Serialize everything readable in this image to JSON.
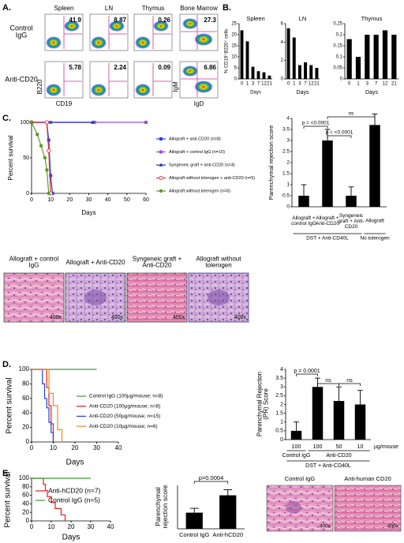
{
  "panel_labels": [
    "A.",
    "B.",
    "C.",
    "D.",
    "E."
  ],
  "flow": {
    "tissues": [
      "Spleen",
      "LN",
      "Thymus",
      "Bone Marrow"
    ],
    "groups": [
      "Control IgG",
      "Anti-CD20"
    ],
    "x_label": "CD19",
    "y_label": "B220",
    "x2_label": "IgD",
    "y2_label": "IgM",
    "values": [
      [
        41.9,
        8.87,
        0.26,
        27.3
      ],
      [
        5.78,
        2.24,
        0.09,
        6.86
      ]
    ]
  },
  "histology": {
    "c": [
      {
        "caption": "Allograft + control IgG",
        "magnification": "400x"
      },
      {
        "caption": "Allograft + Anti-CD20",
        "magnification": "400x"
      },
      {
        "caption": "Syngeneic graft + Anti-CD20",
        "magnification": "400x"
      },
      {
        "caption": "Allograft without tolerogen",
        "magnification": "400x"
      }
    ],
    "e": [
      {
        "caption": "Control IgG",
        "magnification": "400x"
      },
      {
        "caption": "Anti-human CD20",
        "magnification": "400x"
      }
    ]
  },
  "chart_data": [
    {
      "type": "bar",
      "title": "Spleen",
      "ylabel": "% CD19⁺B220⁺ cells",
      "xlabel": "Days",
      "categories": [
        "0",
        "1",
        "3",
        "7",
        "12",
        "21"
      ],
      "values": [
        22,
        17,
        5.5,
        3.5,
        3,
        1.5
      ],
      "color": "#000000",
      "ylim": [
        0,
        25
      ],
      "yticks": [
        0,
        5,
        10,
        15,
        20,
        25
      ]
    },
    {
      "type": "bar",
      "title": "LN",
      "xlabel": "Days",
      "categories": [
        "0",
        "1",
        "3",
        "7",
        "12",
        "21"
      ],
      "values": [
        5.5,
        4.5,
        1.5,
        1.8,
        1.5,
        1.2
      ],
      "color": "#000000",
      "ylim": [
        0,
        6
      ],
      "yticks": [
        0,
        2,
        4,
        6
      ]
    },
    {
      "type": "bar",
      "title": "Thymus",
      "xlabel": "Days",
      "categories": [
        "0",
        "1",
        "3",
        "7",
        "12",
        "21"
      ],
      "values": [
        0.18,
        0.1,
        0.2,
        0.2,
        0.22,
        0.2
      ],
      "color": "#000000",
      "ylim": [
        0,
        0.25
      ],
      "yticks": [
        0,
        0.05,
        0.1,
        0.15,
        0.2,
        0.25
      ]
    },
    {
      "type": "line",
      "ylabel": "Percent survival",
      "xlabel": "Days",
      "xlim": [
        0,
        60
      ],
      "xticks": [
        0,
        10,
        20,
        30,
        40,
        50,
        60
      ],
      "ylim": [
        0,
        100
      ],
      "yticks": [
        0,
        50,
        100
      ],
      "series": [
        {
          "name": "Allograft + anti-CD20 (n=8)",
          "color": "#2346d8",
          "marker": "square",
          "x": [
            0,
            8,
            9,
            10,
            11
          ],
          "values": [
            100,
            100,
            75,
            25,
            0
          ]
        },
        {
          "name": "Allograft + control IgG (n=10)",
          "color": "#9a4fd8",
          "marker": "square",
          "x": [
            0,
            10,
            33,
            60
          ],
          "values": [
            100,
            100,
            100,
            100
          ]
        },
        {
          "name": "Syngeneic graft + anti-CD20 (n=4)",
          "color": "#1f35c0",
          "marker": "triangle",
          "x": [
            0,
            32
          ],
          "values": [
            100,
            100
          ]
        },
        {
          "name": "Allograft without tolerogen + anti-CD20 (n=5)",
          "color": "#e0303a",
          "marker": "open-circle",
          "x": [
            0,
            8,
            9,
            10
          ],
          "values": [
            100,
            100,
            60,
            0
          ]
        },
        {
          "name": "Allograft without tolerogen (n=6)",
          "color": "#5a9a2a",
          "marker": "circle",
          "x": [
            0,
            3,
            5,
            7,
            8,
            9
          ],
          "values": [
            100,
            83,
            67,
            50,
            33,
            0
          ]
        }
      ]
    },
    {
      "type": "bar",
      "ylabel": "Parenchymal rejection score",
      "categories": [
        "Allograft + control IgG",
        "Allograft + Anti-CD20",
        "Syngeneic graft + Anti-CD20",
        "Allograft"
      ],
      "values": [
        0.5,
        3,
        0.5,
        3.7
      ],
      "errors": [
        0.5,
        0.5,
        0.4,
        0.5
      ],
      "color": "#000000",
      "ylim": [
        0,
        4
      ],
      "yticks": [
        0,
        0.5,
        1,
        1.5,
        2,
        2.5,
        3,
        3.5,
        4
      ],
      "annotations": [
        "p = <0.0001",
        "p = <0.0001",
        "ns"
      ],
      "groups": [
        "DST + Anti-CD40L",
        "No tolerogen"
      ]
    },
    {
      "type": "line",
      "ylabel": "Percent survival",
      "xlabel": "Days",
      "xlim": [
        0,
        40
      ],
      "xticks": [
        0,
        10,
        20,
        30,
        40
      ],
      "ylim": [
        0,
        100
      ],
      "yticks": [
        0,
        20,
        40,
        60,
        80,
        100
      ],
      "series": [
        {
          "name": "Control IgG (100µg/mouse; n=8)",
          "color": "#3a9a3a",
          "x": [
            0,
            30
          ],
          "values": [
            100,
            100
          ]
        },
        {
          "name": "Anti-CD20 (100µg/mouse; n=8)",
          "color": "#e02020",
          "x": [
            0,
            7,
            7,
            8,
            8,
            9,
            9,
            10,
            10
          ],
          "values": [
            100,
            100,
            75,
            75,
            50,
            50,
            25,
            25,
            0
          ]
        },
        {
          "name": "Anti-CD20 (50µg/mouse; n=15)",
          "color": "#2040d0",
          "x": [
            0,
            5,
            5,
            6,
            6,
            7,
            7,
            8,
            8,
            9,
            9,
            10,
            10
          ],
          "values": [
            100,
            100,
            80,
            80,
            60,
            60,
            47,
            47,
            27,
            27,
            13,
            13,
            0
          ]
        },
        {
          "name": "Anti-CD20 (10µg/mouse; n=6)",
          "color": "#f08a20",
          "x": [
            0,
            8,
            8,
            10,
            10,
            12,
            12,
            14,
            14
          ],
          "values": [
            100,
            100,
            67,
            67,
            50,
            50,
            17,
            17,
            0
          ]
        }
      ]
    },
    {
      "type": "bar",
      "ylabel": "Parenchymal Rejection (PR) Score",
      "categories": [
        "100",
        "100",
        "50",
        "10"
      ],
      "x_unit": "µg/mouse",
      "values": [
        0.5,
        3,
        2.2,
        2
      ],
      "errors": [
        0.5,
        0.5,
        0.8,
        0.8
      ],
      "color": "#000000",
      "ylim": [
        0,
        4
      ],
      "yticks": [
        0,
        0.5,
        1,
        1.5,
        2,
        2.5,
        3,
        3.5,
        4
      ],
      "annotations": [
        "p = 0.0001",
        "ns",
        "ns"
      ],
      "groups": [
        "Control IgG",
        "Anti-CD20",
        "DST + Anti-CD40L"
      ]
    },
    {
      "type": "line",
      "ylabel": "Percent survival",
      "xlabel": "Days",
      "xlim": [
        0,
        40
      ],
      "xticks": [
        0,
        10,
        20,
        30,
        40
      ],
      "ylim": [
        0,
        100
      ],
      "yticks": [
        0,
        20,
        40,
        60,
        80,
        100
      ],
      "series": [
        {
          "name": "Anti-hCD20 (n=7)",
          "color": "#e02020",
          "x": [
            0,
            6,
            6,
            7,
            7,
            8,
            8,
            10,
            10,
            12,
            12,
            15,
            15,
            17,
            17
          ],
          "values": [
            100,
            100,
            86,
            86,
            71,
            71,
            57,
            57,
            43,
            43,
            29,
            29,
            14,
            14,
            0
          ]
        },
        {
          "name": "Control IgG (n=5)",
          "color": "#3a9a3a",
          "x": [
            0,
            30
          ],
          "values": [
            100,
            100
          ]
        }
      ]
    },
    {
      "type": "bar",
      "ylabel": "Parenchymal rejection score",
      "categories": [
        "Control IgG",
        "Anti-hCD20"
      ],
      "values": [
        1.3,
        2.7
      ],
      "errors": [
        0.35,
        0.45
      ],
      "color": "#000000",
      "ylim": [
        0,
        3.5
      ],
      "annotations": [
        "p=0.0004"
      ]
    }
  ]
}
